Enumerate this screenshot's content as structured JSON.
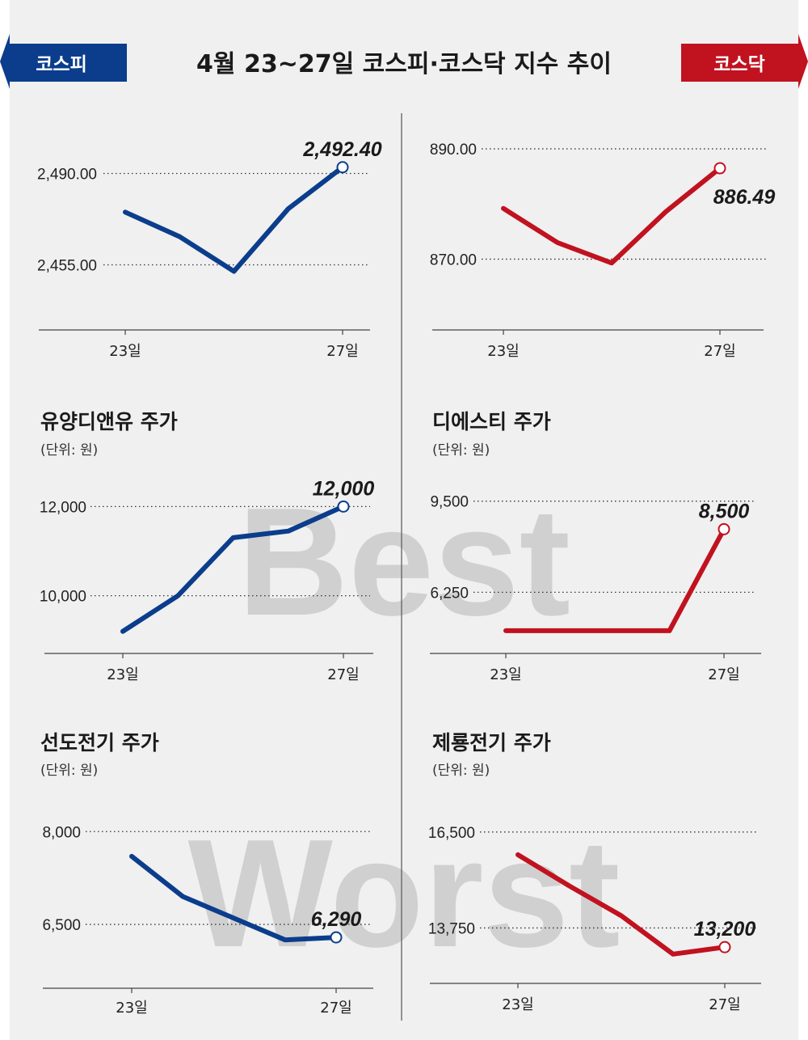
{
  "header": {
    "title": "4월 23~27일  코스피·코스닥 지수 추이",
    "left_badge": "코스피",
    "right_badge": "코스닥"
  },
  "watermarks": {
    "best": "Best",
    "worst": "Worst"
  },
  "colors": {
    "blue": "#0b3d8c",
    "red": "#c1121f",
    "background": "#f0f0f0"
  },
  "chart_data": [
    {
      "type": "line",
      "title": "",
      "unit": "",
      "categories": [
        "23일",
        "",
        "",
        "",
        "27일"
      ],
      "series": [
        {
          "values": [
            2475.2,
            2465.8,
            2452.5,
            2476.5,
            2492.4
          ],
          "color": "#0b3d8c"
        }
      ],
      "yticks": [
        2455.0,
        2490.0
      ],
      "ytick_labels": [
        "2,455.00",
        "2,490.00"
      ],
      "ylim": [
        2435,
        2510
      ],
      "data_label": "2,492.40",
      "data_label_position": "above"
    },
    {
      "type": "line",
      "title": "",
      "unit": "",
      "categories": [
        "23일",
        "",
        "",
        "",
        "27일"
      ],
      "series": [
        {
          "values": [
            879.2,
            873.0,
            869.3,
            878.6,
            886.49
          ],
          "color": "#c1121f"
        }
      ],
      "yticks": [
        870.0,
        890.0
      ],
      "ytick_labels": [
        "870.00",
        "890.00"
      ],
      "ylim": [
        859.5,
        895
      ],
      "data_label": "886.49",
      "data_label_position": "below"
    },
    {
      "type": "line",
      "title": "유양디앤유 주가",
      "unit": "(단위: 원)",
      "categories": [
        "23일",
        "",
        "",
        "",
        "27일"
      ],
      "series": [
        {
          "values": [
            9200,
            10000,
            11300,
            11450,
            12000
          ],
          "color": "#0b3d8c"
        }
      ],
      "yticks": [
        10000,
        12000
      ],
      "ytick_labels": [
        "10,000",
        "12,000"
      ],
      "ylim": [
        8850,
        12750
      ],
      "data_label": "12,000",
      "data_label_position": "above"
    },
    {
      "type": "line",
      "title": "디에스티 주가",
      "unit": "(단위: 원)",
      "categories": [
        "23일",
        "",
        "",
        "",
        "27일"
      ],
      "series": [
        {
          "values": [
            4880,
            4880,
            4880,
            4880,
            8500
          ],
          "color": "#c1121f"
        }
      ],
      "yticks": [
        6250,
        9500
      ],
      "ytick_labels": [
        "6,250",
        "9,500"
      ],
      "ylim": [
        4300,
        10500
      ],
      "data_label": "8,500",
      "data_label_position": "above"
    },
    {
      "type": "line",
      "title": "선도전기 주가",
      "unit": "(단위: 원)",
      "categories": [
        "23일",
        "",
        "",
        "",
        "27일"
      ],
      "series": [
        {
          "values": [
            7600,
            6950,
            6600,
            6250,
            6290
          ],
          "color": "#0b3d8c"
        }
      ],
      "yticks": [
        6500,
        8000
      ],
      "ytick_labels": [
        "6,500",
        "8,000"
      ],
      "ylim": [
        5625,
        8500
      ],
      "data_label": "6,290",
      "data_label_position": "above"
    },
    {
      "type": "line",
      "title": "제룡전기 주가",
      "unit": "(단위: 원)",
      "categories": [
        "23일",
        "",
        "",
        "",
        "27일"
      ],
      "series": [
        {
          "values": [
            15850,
            14950,
            14100,
            13000,
            13200
          ],
          "color": "#c1121f"
        }
      ],
      "yticks": [
        13750,
        16500
      ],
      "ytick_labels": [
        "13,750",
        "16,500"
      ],
      "ylim": [
        12300,
        17400
      ],
      "data_label": "13,200",
      "data_label_position": "above"
    }
  ]
}
